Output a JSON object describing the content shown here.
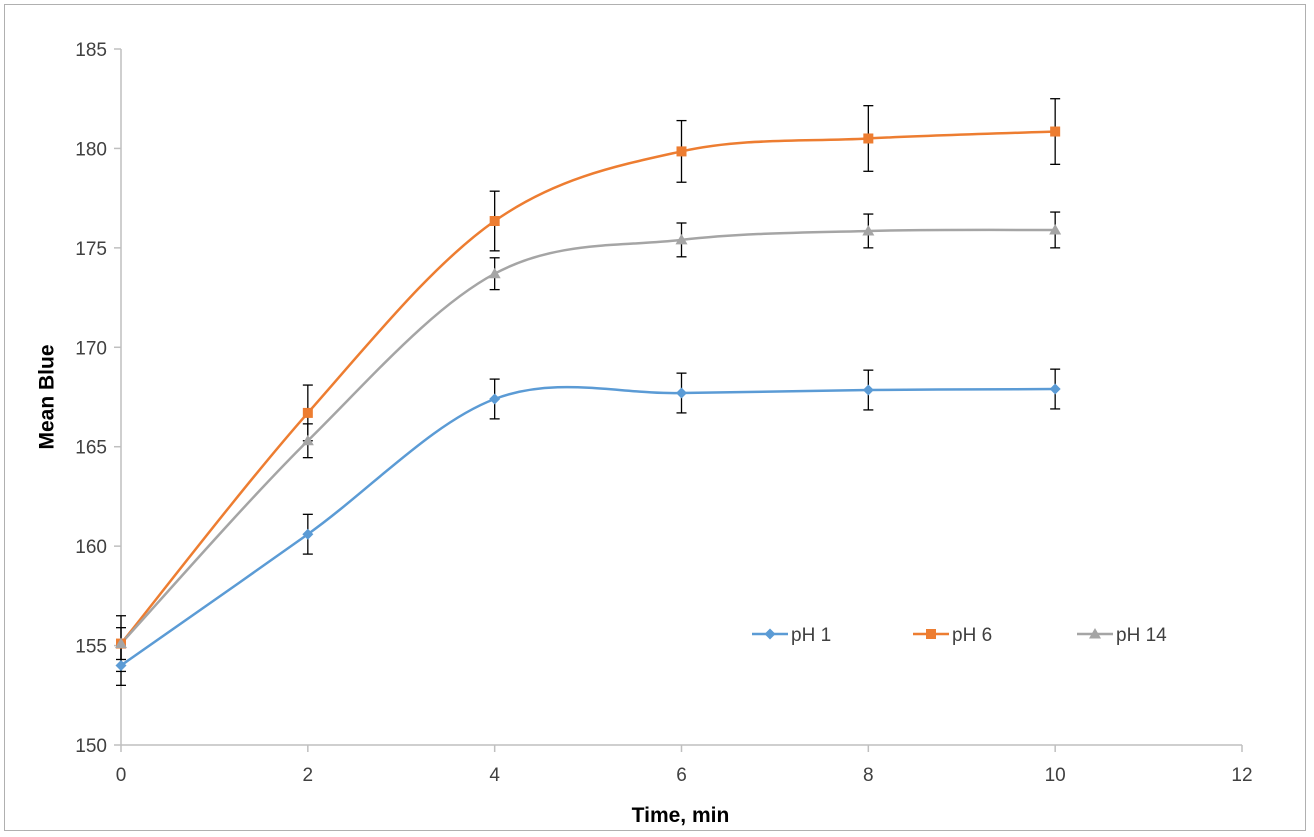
{
  "chart_data": {
    "type": "line",
    "xlabel": "Time, min",
    "ylabel": "Mean Blue",
    "xlim": [
      0,
      12
    ],
    "ylim": [
      150,
      185
    ],
    "x_ticks": [
      0,
      2,
      4,
      6,
      8,
      10,
      12
    ],
    "y_ticks": [
      150,
      155,
      160,
      165,
      170,
      175,
      180,
      185
    ],
    "x_tick_labels": [
      "0",
      "2",
      "4",
      "6",
      "8",
      "10",
      "12"
    ],
    "y_tick_labels": [
      "150",
      "155",
      "160",
      "165",
      "170",
      "175",
      "180",
      "185"
    ],
    "grid": false,
    "legend_position": "inside-lower-right",
    "smooth": true,
    "x": [
      0,
      2,
      4,
      6,
      8,
      10
    ],
    "series": [
      {
        "name": "pH 1",
        "color": "#5b9bd5",
        "marker": "diamond",
        "values": [
          154.0,
          160.6,
          167.4,
          167.7,
          167.85,
          167.9
        ],
        "errors": [
          1.0,
          1.0,
          1.0,
          1.0,
          1.0,
          1.0
        ]
      },
      {
        "name": "pH 6",
        "color": "#ed7d31",
        "marker": "square",
        "values": [
          155.1,
          166.7,
          176.35,
          179.85,
          180.5,
          180.85
        ],
        "errors": [
          1.4,
          1.4,
          1.5,
          1.55,
          1.65,
          1.65
        ]
      },
      {
        "name": "pH 14",
        "color": "#a5a5a5",
        "marker": "triangle",
        "values": [
          155.1,
          165.3,
          173.7,
          175.4,
          175.85,
          175.9
        ],
        "errors": [
          0.8,
          0.85,
          0.8,
          0.85,
          0.85,
          0.9
        ]
      }
    ]
  }
}
